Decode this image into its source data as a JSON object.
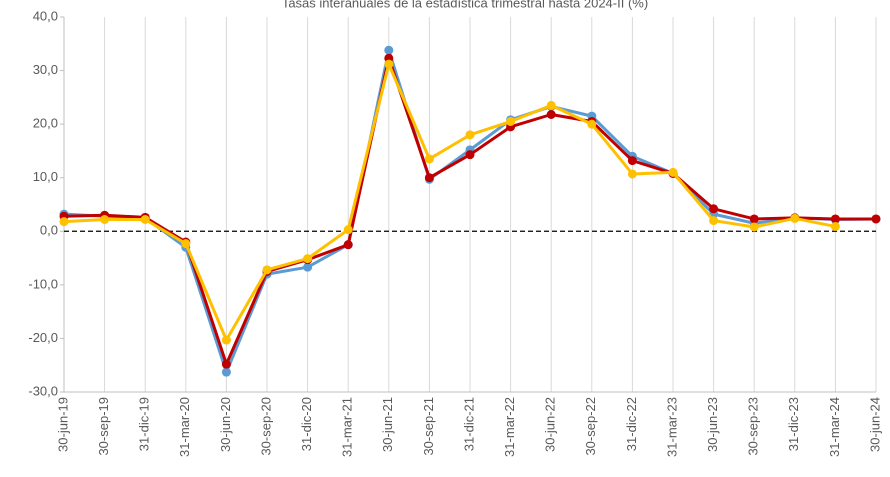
{
  "chart_data": {
    "type": "line",
    "title": "Tasas interanuales de la estadística trimestral hasta 2024-II (%)",
    "categories": [
      "30-jun-19",
      "30-sep-19",
      "31-dic-19",
      "31-mar-20",
      "30-jun-20",
      "30-sep-20",
      "31-dic-20",
      "31-mar-21",
      "30-jun-21",
      "30-sep-21",
      "31-dic-21",
      "31-mar-22",
      "30-jun-22",
      "30-sep-22",
      "31-dic-22",
      "31-mar-23",
      "30-jun-23",
      "30-sep-23",
      "31-dic-23",
      "31-mar-24",
      "30-jun-24"
    ],
    "series": [
      {
        "color": "#5b9bd5",
        "values": [
          3.2,
          2.8,
          2.5,
          -3.0,
          -26.3,
          -8.0,
          -6.7,
          -2.5,
          33.8,
          9.7,
          15.2,
          20.8,
          23.3,
          21.5,
          14.0,
          10.8,
          3.2,
          1.5,
          2.5,
          2.2,
          2.3
        ]
      },
      {
        "color": "#c00000",
        "values": [
          2.8,
          3.0,
          2.6,
          -2.0,
          -24.8,
          -7.5,
          -5.3,
          -2.5,
          32.3,
          10.0,
          14.3,
          19.5,
          21.8,
          20.5,
          13.2,
          10.8,
          4.2,
          2.3,
          2.5,
          2.3,
          2.3
        ]
      },
      {
        "color": "#ffc000",
        "values": [
          1.8,
          2.2,
          2.2,
          -2.3,
          -20.3,
          -7.2,
          -5.1,
          0.3,
          31.2,
          13.5,
          18.0,
          20.5,
          23.5,
          20.0,
          10.7,
          11.0,
          2.0,
          0.8,
          2.4,
          0.9,
          null
        ]
      }
    ],
    "ylim": [
      -30,
      40
    ],
    "yticks": [
      {
        "value": -30,
        "label": "-30,0"
      },
      {
        "value": -20,
        "label": "-20,0"
      },
      {
        "value": -10,
        "label": "-10,0"
      },
      {
        "value": 0,
        "label": "0,0"
      },
      {
        "value": 10,
        "label": "10,0"
      },
      {
        "value": 20,
        "label": "20,0"
      },
      {
        "value": 30,
        "label": "30,0"
      },
      {
        "value": 40,
        "label": "40,0"
      }
    ]
  }
}
